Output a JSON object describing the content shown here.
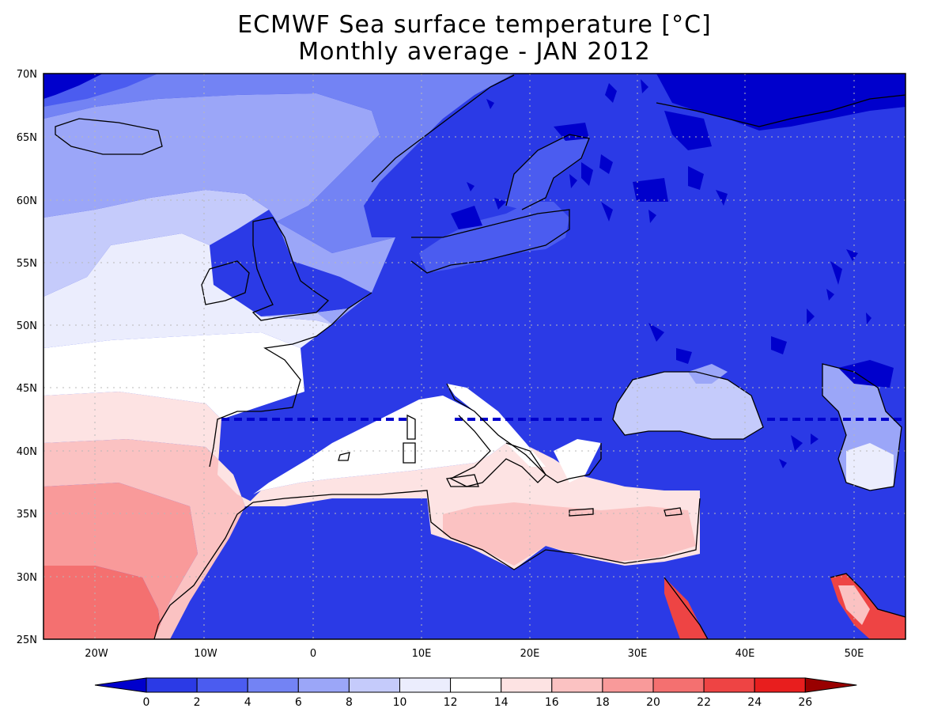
{
  "title": {
    "line1": "ECMWF Sea surface temperature [°C]",
    "line2": "Monthly average - JAN 2012"
  },
  "lat_labels": [
    "70N",
    "65N",
    "60N",
    "55N",
    "50N",
    "45N",
    "40N",
    "35N",
    "30N",
    "25N"
  ],
  "lon_labels": [
    "20W",
    "10W",
    "0",
    "10E",
    "20E",
    "30E",
    "40E",
    "50E"
  ],
  "colorbar": {
    "tick_labels": [
      "0",
      "2",
      "4",
      "6",
      "8",
      "10",
      "12",
      "14",
      "16",
      "18",
      "20",
      "22",
      "24",
      "26"
    ],
    "colors": [
      "#0000cc",
      "#2b3ae6",
      "#4b5cf0",
      "#7383f4",
      "#9ba6f8",
      "#c5cbfb",
      "#ebedfd",
      "#ffffff",
      "#fde3e3",
      "#fbc2c2",
      "#f99a9a",
      "#f47070",
      "#ee4444",
      "#e81e1e",
      "#990000"
    ]
  }
}
